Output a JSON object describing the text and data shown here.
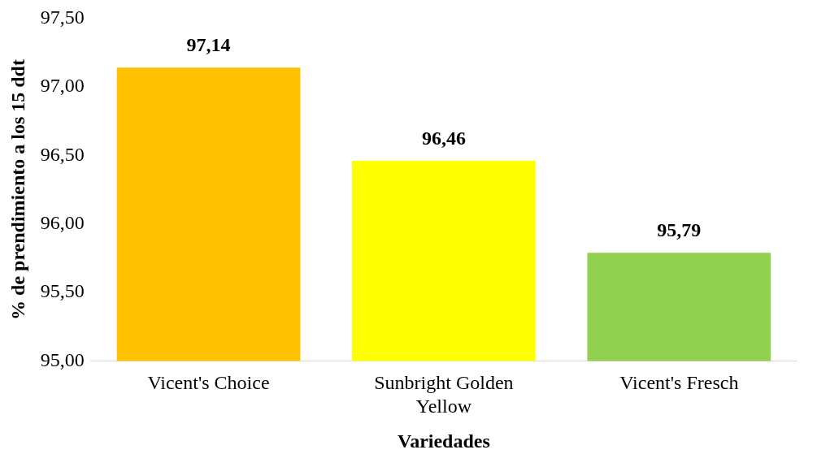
{
  "chart_data": {
    "type": "bar",
    "xlabel": "Variedades",
    "ylabel": "% de prendimiento a los 15 ddt",
    "categories": [
      "Vicent's Choice",
      "Sunbright Golden Yellow",
      "Vicent's Fresch"
    ],
    "values": [
      97.14,
      96.46,
      95.79
    ],
    "colors": [
      "#ffc000",
      "#ffff00",
      "#92d050"
    ],
    "ylim": [
      95,
      97.5
    ],
    "yticks": [
      {
        "value": 95,
        "label": "95,00"
      },
      {
        "value": 95.5,
        "label": "95,50"
      },
      {
        "value": 96,
        "label": "96,00"
      },
      {
        "value": 96.5,
        "label": "96,50"
      },
      {
        "value": 97,
        "label": "97,00"
      },
      {
        "value": 97.5,
        "label": "97,50"
      }
    ],
    "value_labels": [
      "97,14",
      "96,46",
      "95,79"
    ],
    "grid": false,
    "legend": false
  }
}
